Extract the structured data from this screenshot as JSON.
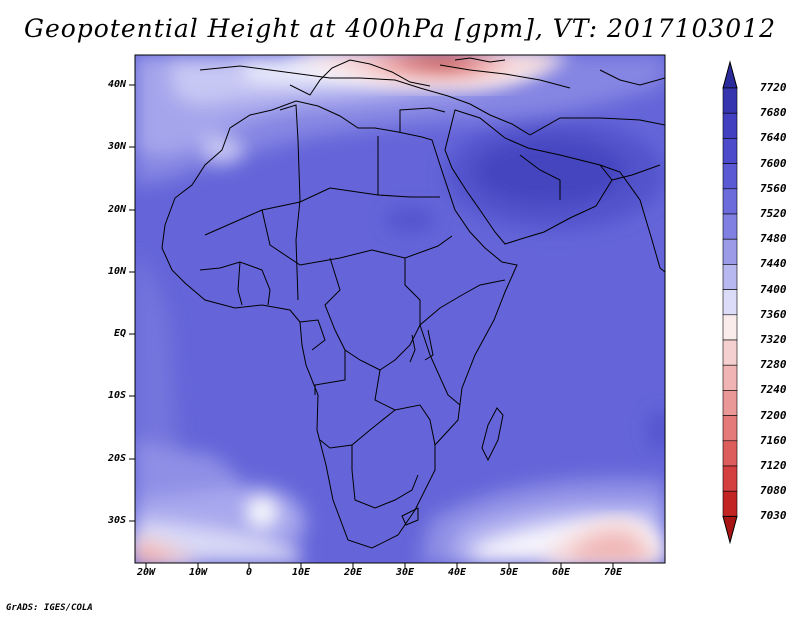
{
  "title": "Geopotential Height at 400hPa [gpm], VT: 2017103012",
  "credit": "GrADS: IGES/COLA",
  "lat_labels": [
    "40N",
    "30N",
    "20N",
    "10N",
    "EQ",
    "10S",
    "20S",
    "30S"
  ],
  "lon_labels": [
    "20W",
    "10W",
    "0",
    "10E",
    "20E",
    "30E",
    "40E",
    "50E",
    "60E",
    "70E"
  ],
  "colorbar": {
    "levels": [
      "7720",
      "7680",
      "7640",
      "7600",
      "7560",
      "7520",
      "7480",
      "7440",
      "7400",
      "7360",
      "7320",
      "7280",
      "7240",
      "7200",
      "7160",
      "7120",
      "7080",
      "7030"
    ],
    "colors": [
      "#2b2b9c",
      "#3535b0",
      "#4040c0",
      "#4b4bcc",
      "#5a5ad4",
      "#6b6bdc",
      "#8080e2",
      "#9b9be8",
      "#b8b8f0",
      "#dcdcf8",
      "#fbecec",
      "#f5d0d0",
      "#f0b4b4",
      "#ea9797",
      "#e47a7a",
      "#dd5d5d",
      "#d44040",
      "#c22424",
      "#a81414"
    ]
  }
}
